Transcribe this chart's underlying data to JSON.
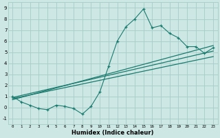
{
  "xlabel": "Humidex (Indice chaleur)",
  "bg_color": "#cde8e4",
  "grid_color": "#aacfcb",
  "line_color": "#1a7a6e",
  "xlim": [
    -0.5,
    23.5
  ],
  "ylim": [
    -1.5,
    9.5
  ],
  "xticks": [
    0,
    1,
    2,
    3,
    4,
    5,
    6,
    7,
    8,
    9,
    10,
    11,
    12,
    13,
    14,
    15,
    16,
    17,
    18,
    19,
    20,
    21,
    22,
    23
  ],
  "yticks": [
    -1,
    0,
    1,
    2,
    3,
    4,
    5,
    6,
    7,
    8,
    9
  ],
  "scatter_x": [
    0,
    1,
    2,
    3,
    4,
    5,
    6,
    7,
    8,
    9,
    10,
    11,
    12,
    13,
    14,
    15,
    16,
    17,
    18,
    19,
    20,
    21,
    22,
    23
  ],
  "scatter_y": [
    1.0,
    0.5,
    0.2,
    -0.1,
    -0.2,
    0.2,
    0.1,
    -0.1,
    -0.6,
    0.1,
    1.4,
    3.7,
    6.0,
    7.3,
    8.0,
    8.9,
    7.2,
    7.4,
    6.7,
    6.3,
    5.5,
    5.5,
    4.9,
    5.4
  ],
  "line1_x": [
    0,
    23
  ],
  "line1_y": [
    0.9,
    5.1
  ],
  "line2_x": [
    0,
    23
  ],
  "line2_y": [
    0.7,
    5.6
  ],
  "line3_x": [
    0,
    23
  ],
  "line3_y": [
    0.8,
    4.6
  ]
}
